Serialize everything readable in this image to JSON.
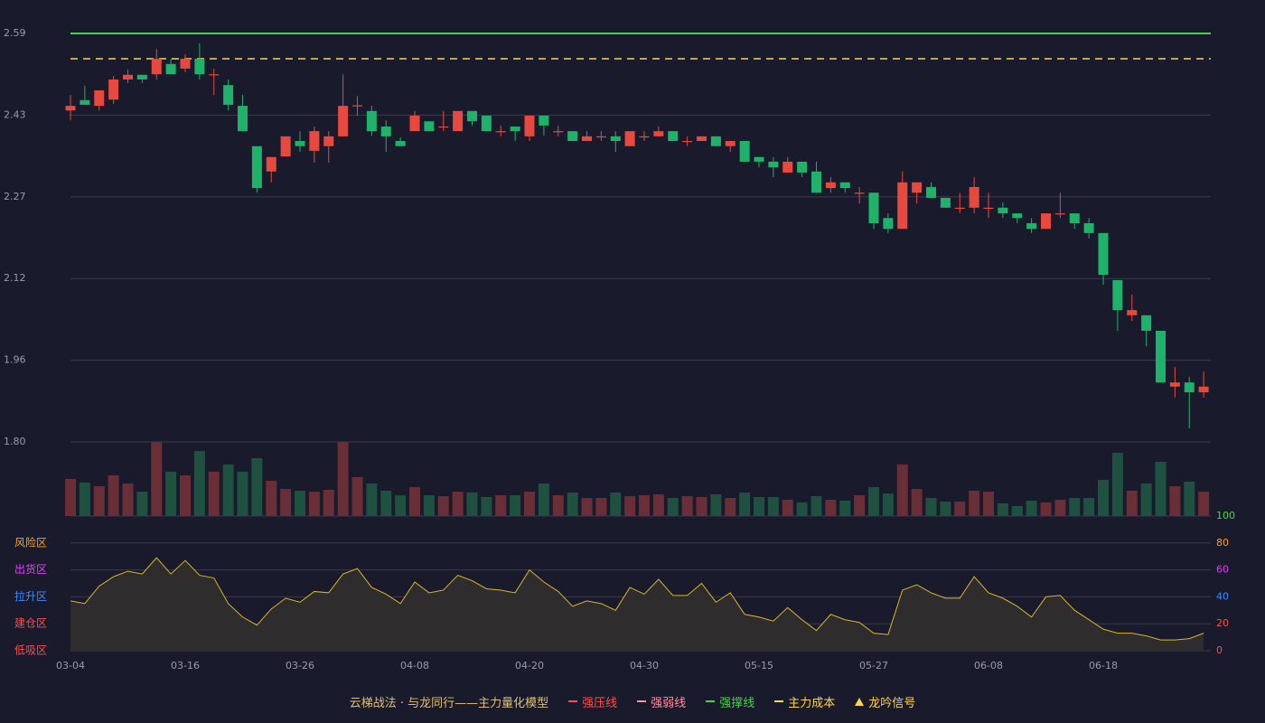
{
  "chart_data": [
    {
      "type": "candlestick",
      "categories": [
        "03-04",
        null,
        null,
        null,
        null,
        null,
        null,
        null,
        "03-16",
        null,
        null,
        null,
        null,
        null,
        null,
        null,
        "03-26",
        null,
        null,
        null,
        null,
        null,
        null,
        null,
        "04-08",
        null,
        null,
        null,
        null,
        null,
        null,
        null,
        "04-20",
        null,
        null,
        null,
        null,
        null,
        null,
        null,
        "04-30",
        null,
        null,
        null,
        null,
        null,
        null,
        null,
        "05-15",
        null,
        null,
        null,
        null,
        null,
        null,
        null,
        "05-27",
        null,
        null,
        null,
        null,
        null,
        null,
        null,
        "06-08",
        null,
        null,
        null,
        null,
        null,
        null,
        null,
        "06-18",
        null,
        null,
        null,
        null,
        null,
        null,
        null
      ],
      "open": [
        2.441,
        2.461,
        2.45,
        2.462,
        2.501,
        2.51,
        2.511,
        2.531,
        2.522,
        2.541,
        2.51,
        2.49,
        2.45,
        2.372,
        2.323,
        2.352,
        2.382,
        2.363,
        2.372,
        2.391,
        2.45,
        2.44,
        2.41,
        2.382,
        2.401,
        2.42,
        2.409,
        2.401,
        2.44,
        2.431,
        2.4,
        2.41,
        2.391,
        2.431,
        2.4,
        2.401,
        2.382,
        2.39,
        2.391,
        2.372,
        2.39,
        2.391,
        2.401,
        2.381,
        2.382,
        2.391,
        2.372,
        2.382,
        2.351,
        2.342,
        2.321,
        2.342,
        2.323,
        2.291,
        2.302,
        2.281,
        2.282,
        2.233,
        2.212,
        2.282,
        2.293,
        2.272,
        2.252,
        2.253,
        2.252,
        2.253,
        2.242,
        2.223,
        2.212,
        2.241,
        2.242,
        2.223,
        2.204,
        2.113,
        2.045,
        2.045,
        2.015,
        1.907,
        1.915,
        1.896
      ],
      "high": [
        2.471,
        2.489,
        2.48,
        2.508,
        2.52,
        2.51,
        2.56,
        2.541,
        2.55,
        2.571,
        2.522,
        2.501,
        2.471,
        2.372,
        2.351,
        2.391,
        2.401,
        2.41,
        2.401,
        2.511,
        2.469,
        2.45,
        2.422,
        2.389,
        2.44,
        2.42,
        2.44,
        2.44,
        2.44,
        2.431,
        2.412,
        2.41,
        2.431,
        2.431,
        2.412,
        2.401,
        2.401,
        2.401,
        2.401,
        2.401,
        2.401,
        2.41,
        2.401,
        2.391,
        2.391,
        2.391,
        2.382,
        2.382,
        2.351,
        2.351,
        2.351,
        2.342,
        2.342,
        2.312,
        2.302,
        2.293,
        2.282,
        2.242,
        2.323,
        2.302,
        2.302,
        2.272,
        2.282,
        2.312,
        2.282,
        2.263,
        2.242,
        2.233,
        2.242,
        2.282,
        2.242,
        2.233,
        2.204,
        2.113,
        2.085,
        2.045,
        2.015,
        1.945,
        1.926,
        1.936
      ],
      "low": [
        2.422,
        2.452,
        2.441,
        2.454,
        2.494,
        2.494,
        2.501,
        2.511,
        2.515,
        2.501,
        2.471,
        2.441,
        2.401,
        2.282,
        2.302,
        2.352,
        2.361,
        2.34,
        2.34,
        2.391,
        2.431,
        2.392,
        2.361,
        2.372,
        2.401,
        2.401,
        2.401,
        2.401,
        2.412,
        2.401,
        2.391,
        2.382,
        2.382,
        2.392,
        2.391,
        2.382,
        2.382,
        2.382,
        2.361,
        2.372,
        2.382,
        2.391,
        2.382,
        2.372,
        2.382,
        2.372,
        2.361,
        2.342,
        2.331,
        2.312,
        2.321,
        2.312,
        2.282,
        2.282,
        2.282,
        2.261,
        2.212,
        2.204,
        2.212,
        2.261,
        2.272,
        2.253,
        2.242,
        2.242,
        2.233,
        2.233,
        2.223,
        2.204,
        2.212,
        2.233,
        2.212,
        2.193,
        2.104,
        2.015,
        2.034,
        1.985,
        1.915,
        1.886,
        1.826,
        1.886
      ],
      "close": [
        2.45,
        2.452,
        2.48,
        2.501,
        2.51,
        2.501,
        2.541,
        2.511,
        2.541,
        2.511,
        2.511,
        2.452,
        2.401,
        2.291,
        2.351,
        2.391,
        2.372,
        2.401,
        2.391,
        2.45,
        2.451,
        2.401,
        2.391,
        2.372,
        2.431,
        2.401,
        2.41,
        2.44,
        2.42,
        2.401,
        2.401,
        2.401,
        2.431,
        2.412,
        2.401,
        2.382,
        2.391,
        2.391,
        2.382,
        2.401,
        2.391,
        2.401,
        2.382,
        2.382,
        2.391,
        2.372,
        2.382,
        2.342,
        2.342,
        2.331,
        2.342,
        2.321,
        2.282,
        2.302,
        2.291,
        2.282,
        2.223,
        2.212,
        2.302,
        2.302,
        2.272,
        2.253,
        2.253,
        2.293,
        2.253,
        2.242,
        2.233,
        2.212,
        2.242,
        2.242,
        2.223,
        2.204,
        2.123,
        2.055,
        2.055,
        2.015,
        1.915,
        1.915,
        1.896,
        1.907
      ],
      "up_color": "#e8493f",
      "down_color": "#1fb26a",
      "ylim": [
        1.8,
        2.59
      ],
      "yticks": [
        {
          "value": 1.8,
          "label": "1.80"
        },
        {
          "value": 1.958,
          "label": "1.96"
        },
        {
          "value": 2.116,
          "label": "2.12"
        },
        {
          "value": 2.274,
          "label": "2.27"
        },
        {
          "value": 2.432,
          "label": "2.43"
        },
        2.59
      ],
      "grid": true
    },
    {
      "type": "bar",
      "values": [
        41,
        37,
        33,
        45,
        36,
        27,
        82,
        49,
        45,
        72,
        49,
        57,
        49,
        64,
        39,
        30,
        28,
        27,
        29,
        82,
        43,
        36,
        28,
        23,
        32,
        23,
        22,
        27,
        26,
        21,
        23,
        23,
        27,
        36,
        23,
        26,
        20,
        20,
        26,
        22,
        23,
        24,
        20,
        22,
        21,
        24,
        20,
        26,
        21,
        21,
        18,
        15,
        22,
        18,
        17,
        23,
        32,
        25,
        57,
        30,
        20,
        16,
        16,
        28,
        27,
        14,
        11,
        17,
        15,
        18,
        20,
        20,
        40,
        70,
        28,
        36,
        60,
        33,
        38,
        27
      ],
      "up_color": "#6a2e36",
      "down_color": "#1e5140"
    },
    {
      "type": "area",
      "values": [
        37,
        35,
        48,
        55,
        59,
        57,
        69,
        57,
        67,
        56,
        54,
        35,
        25,
        19,
        31,
        39,
        36,
        44,
        43,
        57,
        61,
        47,
        42,
        35,
        51,
        43,
        45,
        56,
        52,
        46,
        45,
        43,
        60,
        51,
        44,
        33,
        37,
        35,
        30,
        47,
        42,
        53,
        41,
        41,
        50,
        36,
        43,
        27,
        25,
        22,
        32,
        23,
        15,
        27,
        23,
        21,
        13,
        12,
        45,
        49,
        43,
        39,
        39,
        55,
        43,
        39,
        33,
        25,
        40,
        41,
        30,
        23,
        16,
        13,
        13,
        11,
        8,
        8,
        9,
        13
      ],
      "color": "#d9b526",
      "fill": "#2f2c2e",
      "ylim": [
        0,
        100
      ],
      "yticks": [
        0,
        20,
        40,
        60,
        80,
        100
      ],
      "ytick_colors": [
        "#ff4d4f",
        "#ff4d4f",
        "#3d8bff",
        "#e040fb",
        "#ff9f1a",
        "#3ddc3d"
      ],
      "zones": [
        {
          "label": "风险区",
          "value": 80,
          "color": "#ff9f1a"
        },
        {
          "label": "出货区",
          "value": 60,
          "color": "#e040fb"
        },
        {
          "label": "拉升区",
          "value": 40,
          "color": "#3d8bff"
        },
        {
          "label": "建仓区",
          "value": 20,
          "color": "#ff4d4f"
        },
        {
          "label": "低吸区",
          "value": 0,
          "color": "#ff4d4f"
        }
      ],
      "grid": true
    }
  ],
  "legend": {
    "title": "云梯战法 · 与龙同行——主力量化模型",
    "items": [
      {
        "name": "强压线",
        "color": "#ff4d4f",
        "style": "solid"
      },
      {
        "name": "强弱线",
        "color": "#ff8fa3",
        "style": "dashed"
      },
      {
        "name": "强撑线",
        "color": "#4cd04c",
        "style": "solid",
        "value": 2.59
      },
      {
        "name": "主力成本",
        "color": "#ffd54a",
        "style": "dashed",
        "value": 2.541
      },
      {
        "name": "龙吟信号",
        "color": "#ffd54a",
        "style": "triangle"
      }
    ]
  }
}
